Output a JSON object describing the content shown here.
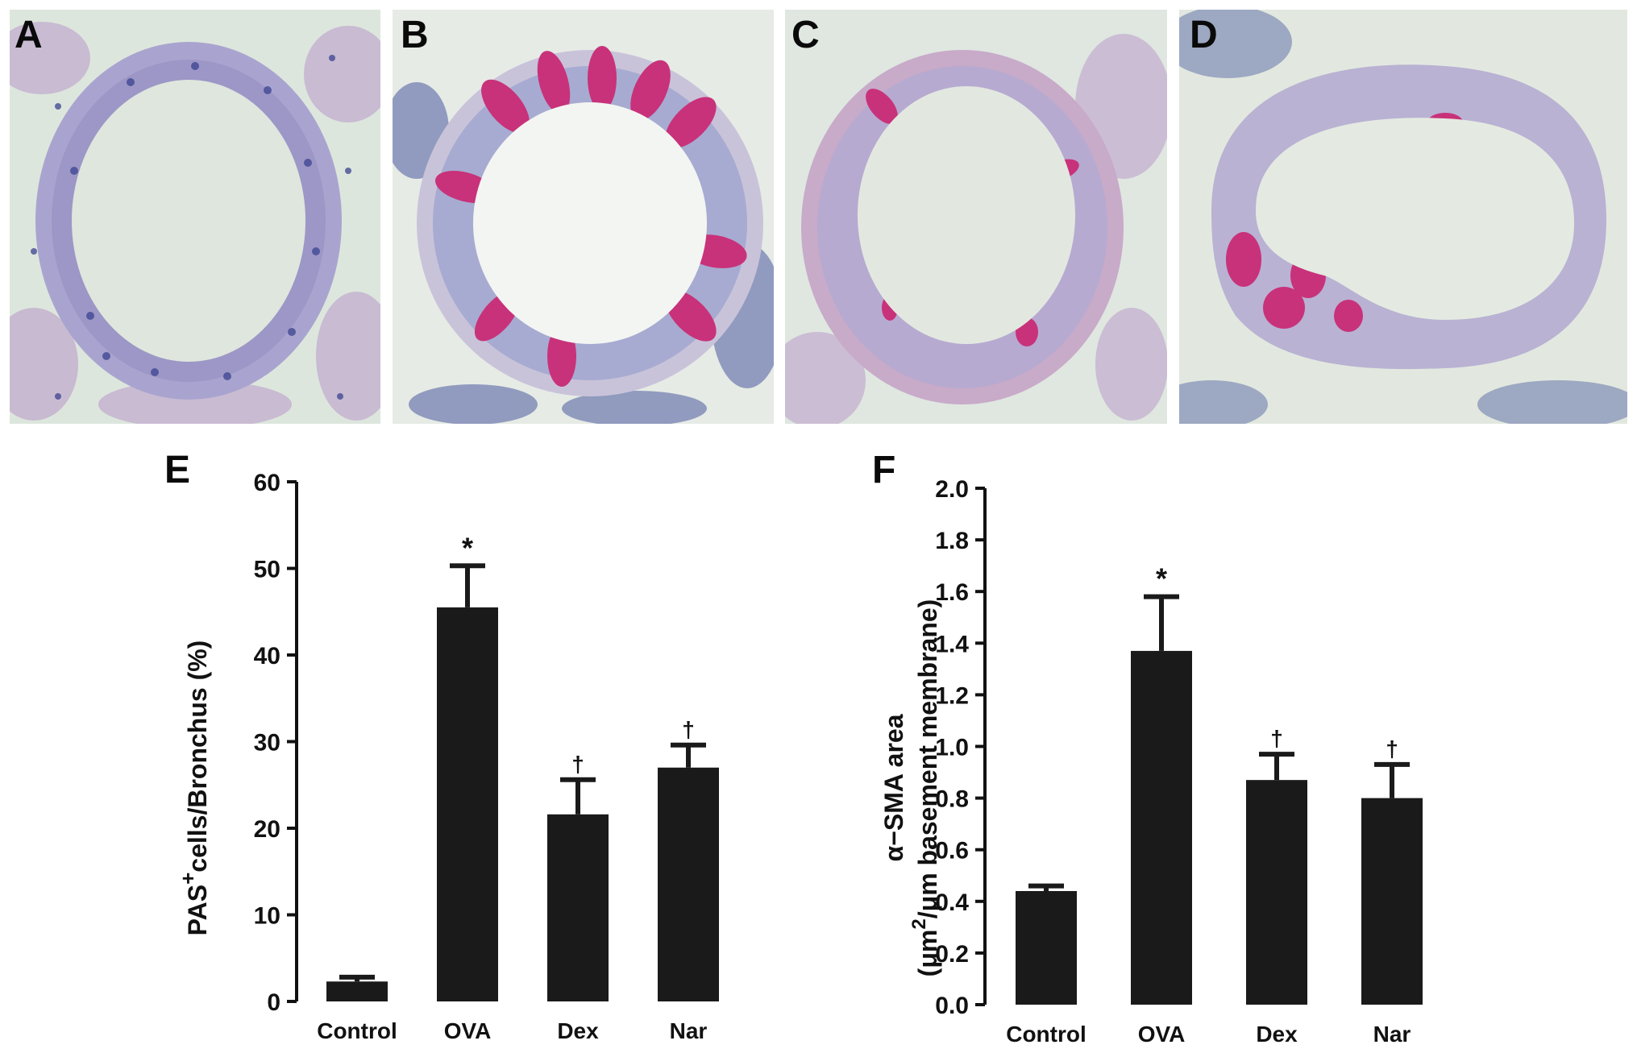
{
  "panels": {
    "micrographs": [
      {
        "letter": "A",
        "goblet_stain": "none"
      },
      {
        "letter": "B",
        "goblet_stain": "heavy"
      },
      {
        "letter": "C",
        "goblet_stain": "moderate"
      },
      {
        "letter": "D",
        "goblet_stain": "moderate"
      }
    ],
    "chart_letters": {
      "e": "E",
      "f": "F"
    }
  },
  "colors": {
    "bar": "#1a1a1a",
    "tissue_background": "#dfe7df",
    "epithelium": "#9fa2c7",
    "nuclei": "#38408a",
    "pas_stain": "#c8327a",
    "stroma": "#c9b7d1"
  },
  "chart_data": [
    {
      "panel": "E",
      "type": "bar",
      "categories": [
        "Control",
        "OVA",
        "Dex",
        "Nar"
      ],
      "values": [
        2.3,
        45.5,
        21.6,
        27.0
      ],
      "errors": [
        0.5,
        4.8,
        4.0,
        2.6
      ],
      "annotations": [
        "",
        "*",
        "†",
        "†"
      ],
      "ylabel_main": "PAS",
      "ylabel_sup": "+",
      "ylabel_rest": "cells/Bronchus (%)",
      "ylim": [
        0,
        60
      ],
      "yticks": [
        "0",
        "10",
        "20",
        "30",
        "40",
        "50",
        "60"
      ],
      "grid": false,
      "legend": "none"
    },
    {
      "panel": "F",
      "type": "bar",
      "categories": [
        "Control",
        "OVA",
        "Dex",
        "Nar"
      ],
      "values": [
        0.44,
        1.37,
        0.87,
        0.8
      ],
      "errors": [
        0.02,
        0.21,
        0.1,
        0.13
      ],
      "annotations": [
        "",
        "*",
        "†",
        "†"
      ],
      "ylabel_line1": "α−SMA area",
      "ylabel_line2_a": "(μm",
      "ylabel_line2_sup": "2",
      "ylabel_line2_b": "/μm  basement  membrane)",
      "ylim": [
        0,
        2.0
      ],
      "yticks": [
        "0.0",
        "0.2",
        "0.4",
        "0.6",
        "0.8",
        "1.0",
        "1.2",
        "1.4",
        "1.6",
        "1.8",
        "2.0"
      ],
      "grid": false,
      "legend": "none"
    }
  ]
}
